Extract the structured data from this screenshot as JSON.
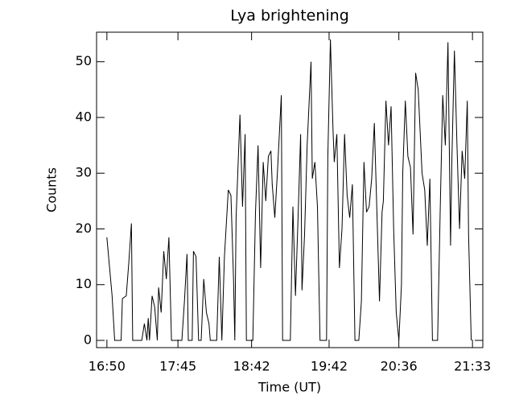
{
  "chart_data": {
    "type": "line",
    "title": "Lya brightening",
    "xlabel": "Time (UT)",
    "ylabel": "Counts",
    "color": "#000000",
    "x": [
      "16:50",
      "16:54",
      "16:56",
      "17:01",
      "17:02",
      "17:05",
      "17:07",
      "17:09",
      "17:10",
      "17:17",
      "17:19",
      "17:21",
      "17:22",
      "17:23",
      "17:25",
      "17:27",
      "17:29",
      "17:30",
      "17:32",
      "17:34",
      "17:36",
      "17:38",
      "17:40",
      "17:48",
      "17:50",
      "17:52",
      "17:53",
      "17:56",
      "17:57",
      "17:59",
      "18:01",
      "18:03",
      "18:05",
      "18:07",
      "18:09",
      "18:10",
      "18:15",
      "18:17",
      "18:19",
      "18:21",
      "18:24",
      "18:26",
      "18:28",
      "18:29",
      "18:30",
      "18:33",
      "18:35",
      "18:37",
      "18:38",
      "18:43",
      "18:45",
      "18:47",
      "18:49",
      "18:51",
      "18:53",
      "18:55",
      "18:57",
      "18:58",
      "19:00",
      "19:02",
      "19:05",
      "19:06",
      "19:10",
      "19:12",
      "19:14",
      "19:16",
      "19:18",
      "19:20",
      "19:21",
      "19:23",
      "19:25",
      "19:28",
      "19:29",
      "19:31",
      "19:33",
      "19:35",
      "19:40",
      "19:41",
      "19:43",
      "19:45",
      "19:46",
      "19:48",
      "19:50",
      "19:52",
      "19:54",
      "19:56",
      "19:58",
      "20:00",
      "20:02",
      "20:05",
      "20:07",
      "20:09",
      "20:11",
      "20:13",
      "20:15",
      "20:17",
      "20:19",
      "20:21",
      "20:23",
      "20:24",
      "20:26",
      "20:28",
      "20:30",
      "20:32",
      "20:34",
      "20:36",
      "20:38",
      "20:39",
      "20:41",
      "20:43",
      "20:45",
      "20:47",
      "20:49",
      "20:51",
      "20:52",
      "20:54",
      "20:56",
      "20:58",
      "21:00",
      "21:02",
      "21:06",
      "21:08",
      "21:10",
      "21:12",
      "21:14",
      "21:16",
      "21:17",
      "21:19",
      "21:21",
      "21:23",
      "21:25",
      "21:27",
      "21:29",
      "21:30",
      "21:32"
    ],
    "values": [
      18.5,
      8,
      0,
      0,
      7.5,
      8,
      14,
      21,
      0,
      0,
      3,
      0,
      4,
      0,
      8,
      6,
      0,
      9.5,
      5,
      16,
      11,
      18.5,
      0,
      0,
      7,
      15.5,
      0,
      0,
      16,
      15,
      0,
      0,
      11,
      5,
      3,
      0,
      0,
      15,
      0,
      15,
      27,
      26,
      11,
      0,
      22,
      40.5,
      24,
      37,
      0,
      0,
      23,
      35,
      13,
      32,
      25,
      33,
      34,
      28,
      22,
      30,
      44,
      0,
      0,
      0,
      24,
      8,
      22,
      37,
      9,
      19,
      35,
      50,
      29,
      32,
      24,
      0,
      0,
      33,
      54,
      38,
      32,
      37,
      13,
      20,
      37,
      26,
      22,
      28,
      0,
      0,
      7,
      32,
      23,
      24,
      29,
      39,
      23,
      7,
      23,
      25,
      43,
      35,
      42,
      20,
      5,
      0,
      10,
      30,
      43,
      33,
      31,
      19,
      48,
      45,
      40,
      30,
      27,
      17,
      29,
      0,
      0,
      23,
      44,
      35,
      53.5,
      17,
      32,
      52,
      35,
      20,
      34,
      29,
      43,
      19,
      0
    ],
    "xlim": [
      "16:42",
      "21:41"
    ],
    "xticks": [
      "16:50",
      "17:45",
      "18:42",
      "19:42",
      "20:36",
      "21:33"
    ],
    "ylim": [
      -1.3,
      55.3
    ],
    "yticks": [
      0,
      10,
      20,
      30,
      40,
      50
    ]
  }
}
